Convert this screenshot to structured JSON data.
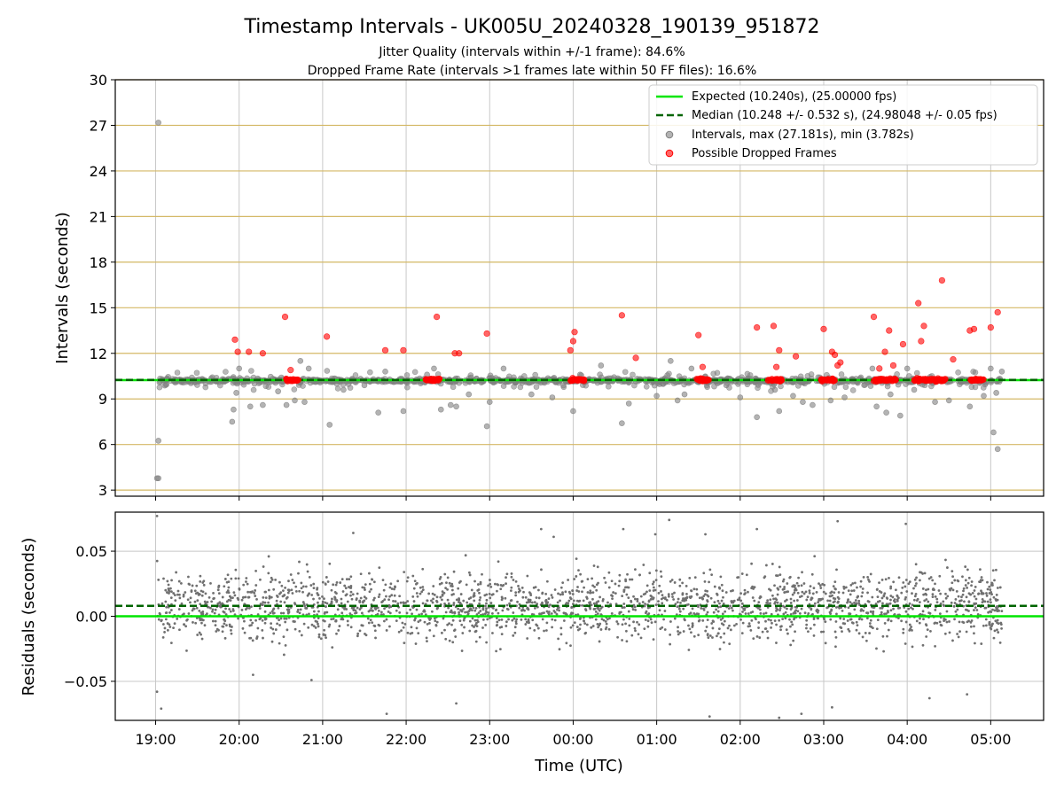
{
  "chart_data": [
    {
      "type": "scatter",
      "title": "Timestamp Intervals - UK005U_20240328_190139_951872",
      "subtitle_lines": [
        "Jitter Quality (intervals within +/-1 frame): 84.6%",
        "Dropped Frame Rate (intervals >1 frames late within 50 FF files): 16.6%"
      ],
      "ylabel": "Intervals (seconds)",
      "xlim": [
        "18:31",
        "05:38"
      ],
      "ylim": [
        2.6,
        30
      ],
      "yticks": [
        3,
        6,
        9,
        12,
        15,
        18,
        21,
        24,
        27,
        30
      ],
      "xticks": [
        "19:00",
        "20:00",
        "21:00",
        "22:00",
        "23:00",
        "00:00",
        "01:00",
        "02:00",
        "03:00",
        "04:00",
        "05:00"
      ],
      "grid": true,
      "legend_position": "top-right",
      "legend": [
        "Expected (10.240s), (25.00000 fps)",
        "Median (10.248 +/- 0.532 s), (24.98048 +/- 0.05 fps)",
        "Intervals, max (27.181s), min (3.782s)",
        "Possible Dropped Frames"
      ],
      "colors": {
        "expected": "#00e600",
        "median": "#006400",
        "intervals": "#808080",
        "dropped": "#ff0000",
        "hgrid": "#d4b866",
        "vgrid": "#c8c8c8"
      },
      "expected_line": 10.24,
      "median_line": 10.248,
      "x_start": "19:01",
      "x_end": "05:08",
      "band_center": 10.2,
      "interval_outliers": [
        [
          "19:02",
          27.18
        ],
        [
          "19:02",
          6.25
        ],
        [
          "19:01",
          3.78
        ],
        [
          "19:02",
          3.78
        ],
        [
          "19:55",
          7.5
        ],
        [
          "19:56",
          8.3
        ],
        [
          "19:58",
          9.4
        ],
        [
          "20:00",
          11.0
        ],
        [
          "20:08",
          8.5
        ],
        [
          "20:17",
          8.6
        ],
        [
          "20:28",
          9.5
        ],
        [
          "20:34",
          8.6
        ],
        [
          "20:40",
          8.9
        ],
        [
          "20:44",
          11.5
        ],
        [
          "20:47",
          8.8
        ],
        [
          "20:50",
          11.0
        ],
        [
          "21:05",
          7.3
        ],
        [
          "21:15",
          9.6
        ],
        [
          "21:30",
          9.9
        ],
        [
          "21:40",
          8.1
        ],
        [
          "21:45",
          10.8
        ],
        [
          "21:58",
          8.2
        ],
        [
          "22:15",
          10.6
        ],
        [
          "22:20",
          11.0
        ],
        [
          "22:25",
          8.3
        ],
        [
          "22:32",
          8.6
        ],
        [
          "22:36",
          8.5
        ],
        [
          "22:45",
          9.3
        ],
        [
          "22:58",
          7.2
        ],
        [
          "23:00",
          8.8
        ],
        [
          "23:10",
          11.0
        ],
        [
          "23:30",
          9.3
        ],
        [
          "23:45",
          9.1
        ],
        [
          "00:00",
          8.2
        ],
        [
          "00:05",
          10.6
        ],
        [
          "00:20",
          11.2
        ],
        [
          "00:35",
          7.4
        ],
        [
          "00:40",
          8.7
        ],
        [
          "01:00",
          9.2
        ],
        [
          "01:10",
          11.5
        ],
        [
          "01:15",
          8.9
        ],
        [
          "01:20",
          9.3
        ],
        [
          "01:25",
          11.0
        ],
        [
          "01:50",
          9.9
        ],
        [
          "02:00",
          9.1
        ],
        [
          "02:12",
          7.8
        ],
        [
          "02:25",
          9.6
        ],
        [
          "02:28",
          8.2
        ],
        [
          "02:38",
          9.2
        ],
        [
          "02:45",
          8.8
        ],
        [
          "02:52",
          8.6
        ],
        [
          "03:05",
          8.9
        ],
        [
          "03:15",
          9.1
        ],
        [
          "03:35",
          11.0
        ],
        [
          "03:38",
          8.5
        ],
        [
          "03:45",
          8.1
        ],
        [
          "03:48",
          9.3
        ],
        [
          "03:55",
          7.9
        ],
        [
          "04:00",
          11.0
        ],
        [
          "04:05",
          9.6
        ],
        [
          "04:20",
          8.8
        ],
        [
          "04:30",
          8.9
        ],
        [
          "04:45",
          8.5
        ],
        [
          "04:55",
          9.2
        ],
        [
          "05:00",
          11.0
        ],
        [
          "05:02",
          6.8
        ],
        [
          "05:04",
          9.4
        ],
        [
          "05:05",
          5.7
        ],
        [
          "05:08",
          10.8
        ]
      ],
      "dropped_frames": [
        [
          "19:57",
          12.9
        ],
        [
          "19:59",
          12.1
        ],
        [
          "20:07",
          12.1
        ],
        [
          "20:17",
          12.0
        ],
        [
          "20:33",
          14.4
        ],
        [
          "20:37",
          10.9
        ],
        [
          "21:03",
          13.1
        ],
        [
          "21:45",
          12.2
        ],
        [
          "21:58",
          12.2
        ],
        [
          "22:22",
          14.4
        ],
        [
          "22:35",
          12.0
        ],
        [
          "22:38",
          12.0
        ],
        [
          "22:58",
          13.3
        ],
        [
          "23:58",
          12.2
        ],
        [
          "00:00",
          12.8
        ],
        [
          "00:01",
          13.4
        ],
        [
          "00:35",
          14.5
        ],
        [
          "00:45",
          11.7
        ],
        [
          "01:30",
          13.2
        ],
        [
          "01:33",
          11.1
        ],
        [
          "02:12",
          13.7
        ],
        [
          "02:24",
          13.8
        ],
        [
          "02:26",
          11.1
        ],
        [
          "02:28",
          12.2
        ],
        [
          "02:40",
          11.8
        ],
        [
          "03:00",
          13.6
        ],
        [
          "03:06",
          12.1
        ],
        [
          "03:08",
          11.9
        ],
        [
          "03:10",
          11.2
        ],
        [
          "03:12",
          11.4
        ],
        [
          "03:36",
          14.4
        ],
        [
          "03:40",
          11.0
        ],
        [
          "03:44",
          12.1
        ],
        [
          "03:47",
          13.5
        ],
        [
          "03:50",
          11.2
        ],
        [
          "03:57",
          12.6
        ],
        [
          "04:08",
          15.3
        ],
        [
          "04:10",
          12.8
        ],
        [
          "04:12",
          13.8
        ],
        [
          "04:25",
          16.8
        ],
        [
          "04:33",
          11.6
        ],
        [
          "04:45",
          13.5
        ],
        [
          "04:48",
          13.6
        ],
        [
          "05:00",
          13.7
        ],
        [
          "05:05",
          14.7
        ]
      ],
      "dropped_clusters": [
        [
          "20:33",
          "20:43"
        ],
        [
          "22:14",
          "22:24"
        ],
        [
          "23:58",
          "00:08"
        ],
        [
          "01:28",
          "01:38"
        ],
        [
          "02:20",
          "02:30"
        ],
        [
          "02:58",
          "03:08"
        ],
        [
          "03:36",
          "03:52"
        ],
        [
          "04:05",
          "04:28"
        ],
        [
          "04:45",
          "04:55"
        ]
      ]
    },
    {
      "type": "scatter",
      "ylabel": "Residuals (seconds)",
      "xlabel": "Time (UTC)",
      "ylim": [
        -0.08,
        0.08
      ],
      "yticks": [
        -0.05,
        0.0,
        0.05
      ],
      "ytick_labels": [
        "−0.05",
        "0.00",
        "0.05"
      ],
      "expected_line": 0.0,
      "median_line": 0.008,
      "grid": true,
      "residual_center": 0.008,
      "residual_spread": 0.022,
      "residual_outliers": [
        [
          "19:01",
          0.077
        ],
        [
          "19:01",
          -0.058
        ],
        [
          "19:04",
          -0.071
        ],
        [
          "20:10",
          -0.045
        ],
        [
          "20:52",
          -0.049
        ],
        [
          "21:22",
          0.064
        ],
        [
          "21:46",
          -0.075
        ],
        [
          "22:36",
          -0.067
        ],
        [
          "23:37",
          0.067
        ],
        [
          "23:46",
          0.061
        ],
        [
          "00:36",
          0.067
        ],
        [
          "00:59",
          0.063
        ],
        [
          "01:09",
          0.074
        ],
        [
          "01:35",
          0.063
        ],
        [
          "01:38",
          -0.077
        ],
        [
          "02:12",
          0.067
        ],
        [
          "02:28",
          -0.078
        ],
        [
          "02:44",
          -0.075
        ],
        [
          "03:10",
          0.073
        ],
        [
          "03:06",
          -0.07
        ],
        [
          "03:59",
          0.071
        ],
        [
          "04:16",
          -0.063
        ],
        [
          "04:43",
          -0.06
        ]
      ]
    }
  ]
}
